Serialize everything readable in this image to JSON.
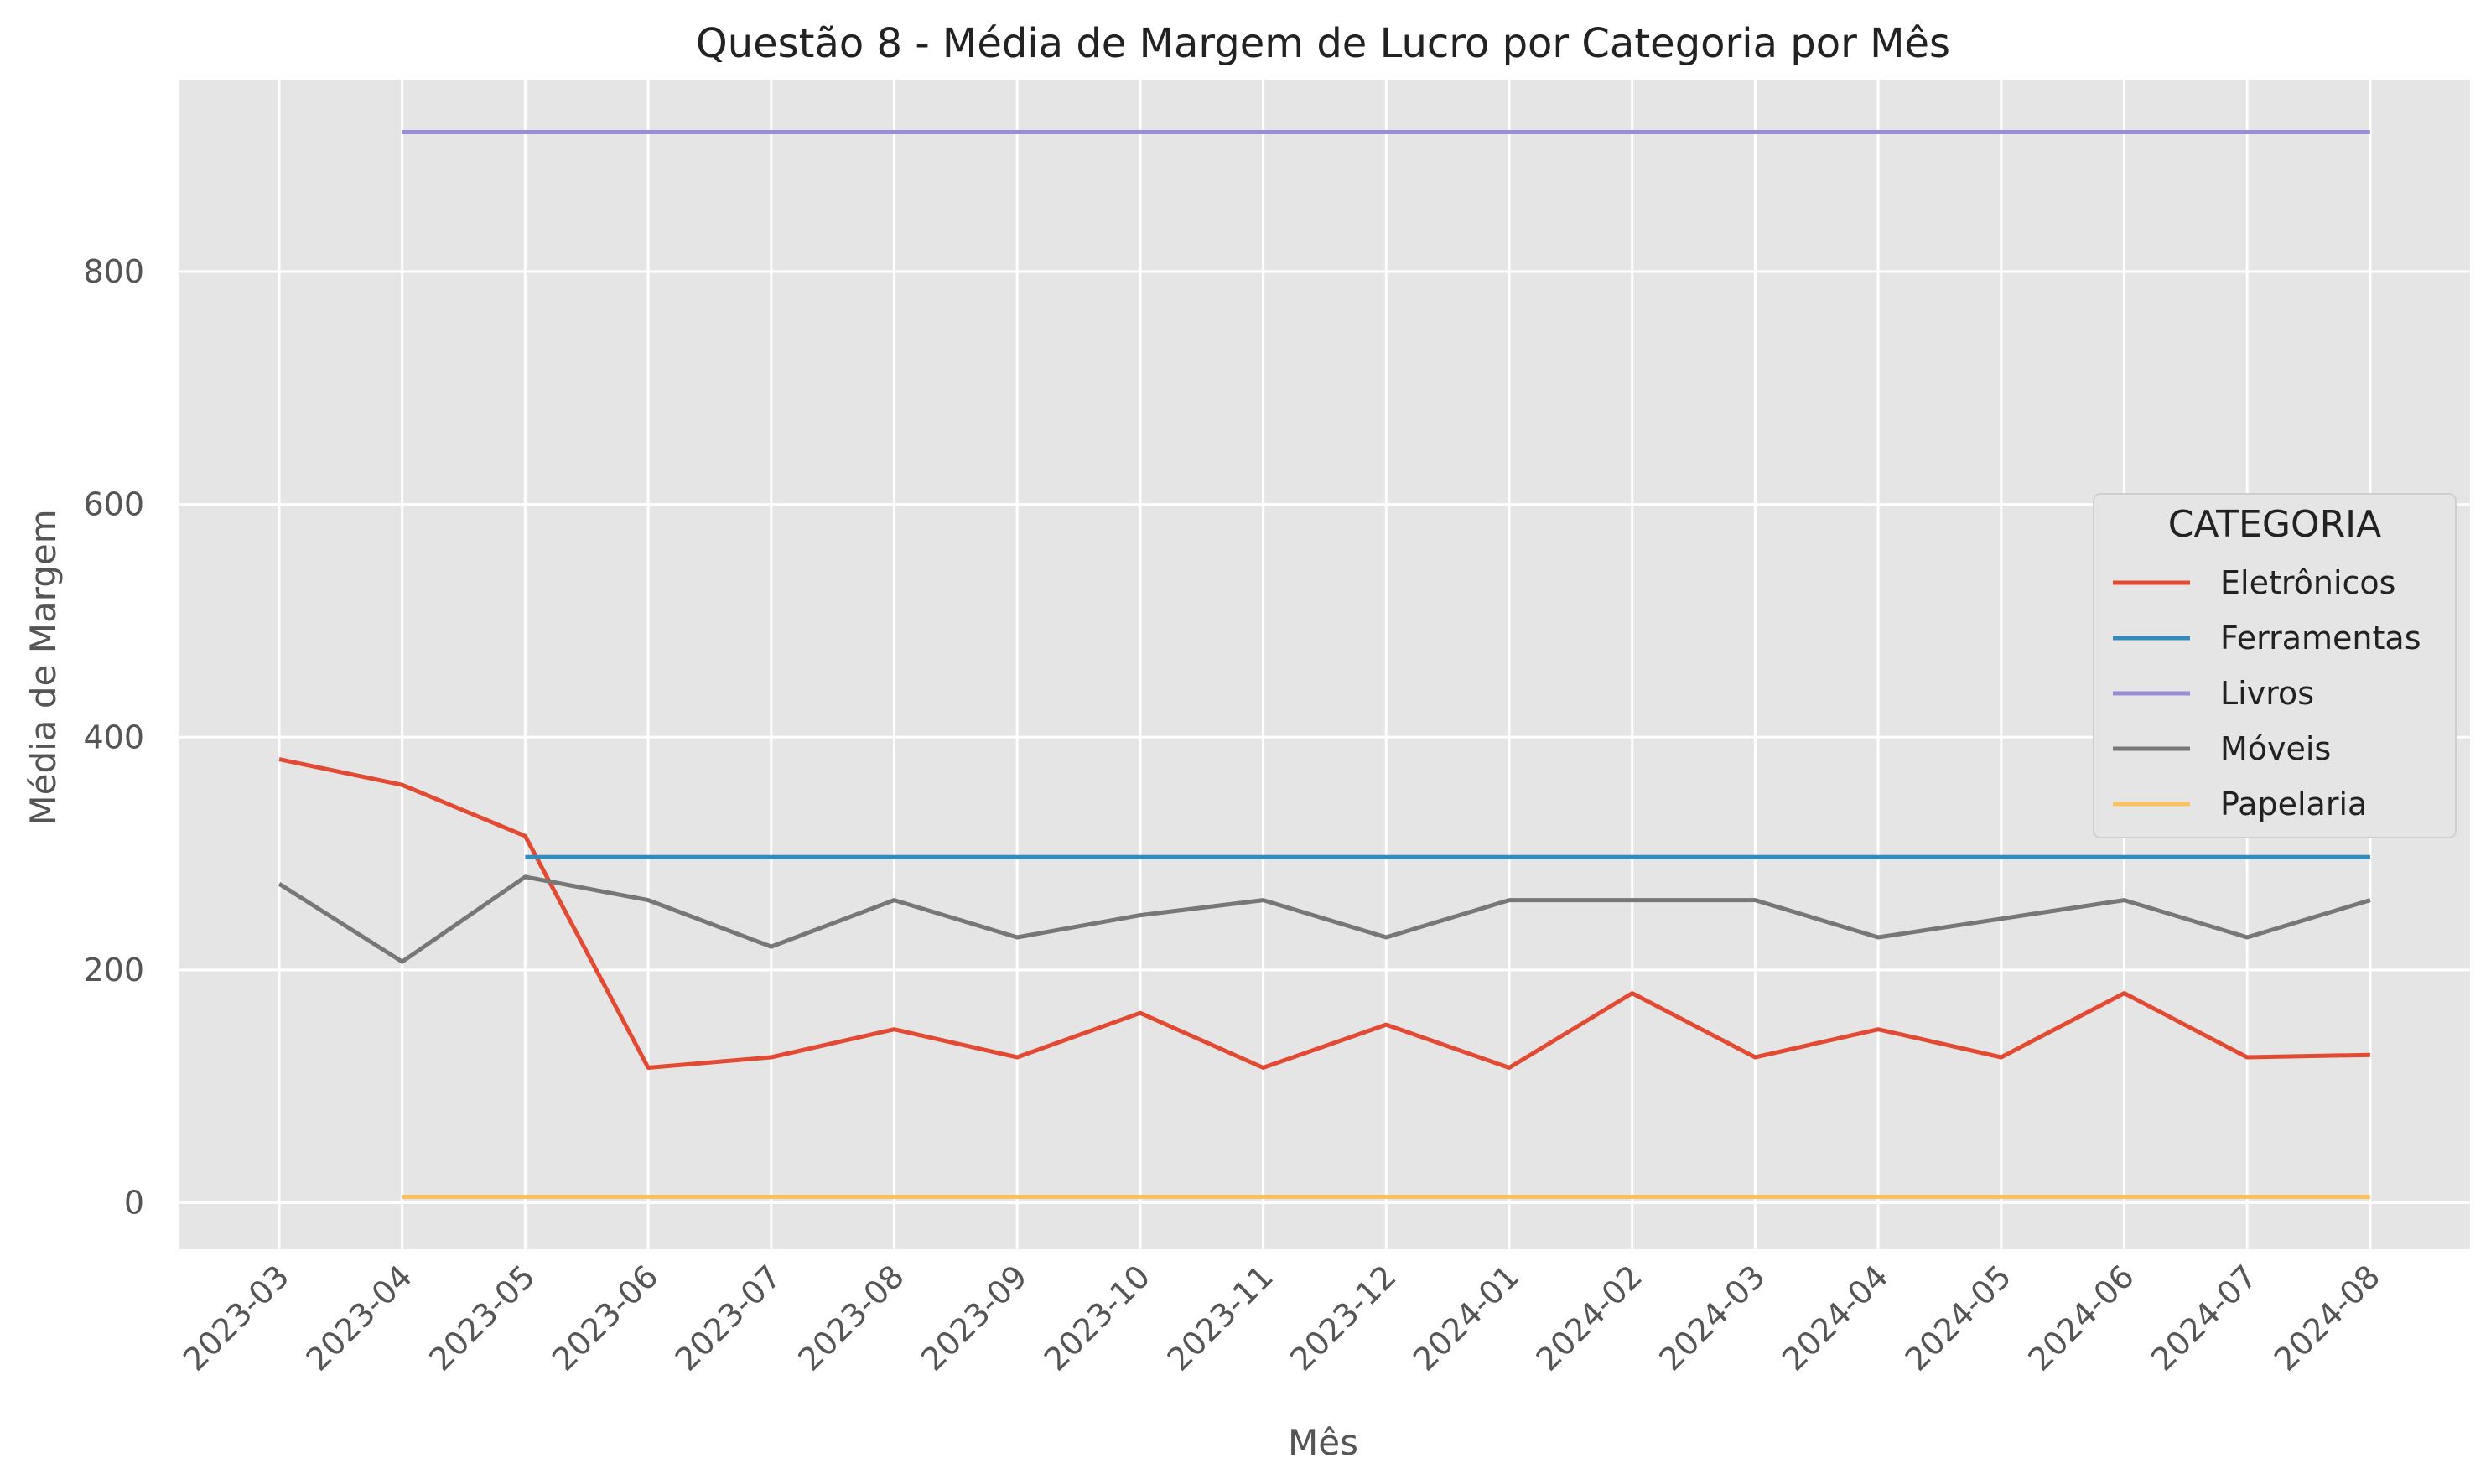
{
  "chart_data": {
    "type": "line",
    "title": "Questão 8 - Média de Margem de Lucro por Categoria por Mês",
    "xlabel": "Mês",
    "ylabel": "Média de Margem",
    "categories": [
      "2023-03",
      "2023-04",
      "2023-05",
      "2023-06",
      "2023-07",
      "2023-08",
      "2023-09",
      "2023-10",
      "2023-11",
      "2023-12",
      "2024-01",
      "2024-02",
      "2024-03",
      "2024-04",
      "2024-05",
      "2024-06",
      "2024-07",
      "2024-08"
    ],
    "ylim": [
      -40,
      965
    ],
    "yticks": [
      0,
      200,
      400,
      600,
      800
    ],
    "grid": true,
    "legend": {
      "title": "CATEGORIA",
      "placement": "center-right"
    },
    "series": [
      {
        "name": "Eletrônicos",
        "color": "#E24A33",
        "values": [
          381,
          359,
          315,
          116,
          125,
          149,
          125,
          163,
          116,
          153,
          116,
          180,
          125,
          149,
          125,
          180,
          125,
          127
        ]
      },
      {
        "name": "Ferramentas",
        "color": "#348ABD",
        "values": [
          null,
          null,
          297,
          297,
          297,
          297,
          297,
          297,
          297,
          297,
          297,
          297,
          297,
          297,
          297,
          297,
          297,
          297
        ]
      },
      {
        "name": "Livros",
        "color": "#988ED5",
        "values": [
          null,
          920,
          920,
          920,
          920,
          920,
          920,
          920,
          920,
          920,
          920,
          920,
          920,
          920,
          920,
          920,
          920,
          920
        ]
      },
      {
        "name": "Móveis",
        "color": "#777777",
        "values": [
          274,
          207,
          280,
          260,
          220,
          260,
          228,
          247,
          260,
          228,
          260,
          260,
          260,
          228,
          244,
          260,
          228,
          260
        ]
      },
      {
        "name": "Papelaria",
        "color": "#FBC15E",
        "values": [
          null,
          5,
          5,
          5,
          5,
          5,
          5,
          5,
          5,
          5,
          5,
          5,
          5,
          5,
          5,
          5,
          5,
          5
        ]
      }
    ]
  }
}
